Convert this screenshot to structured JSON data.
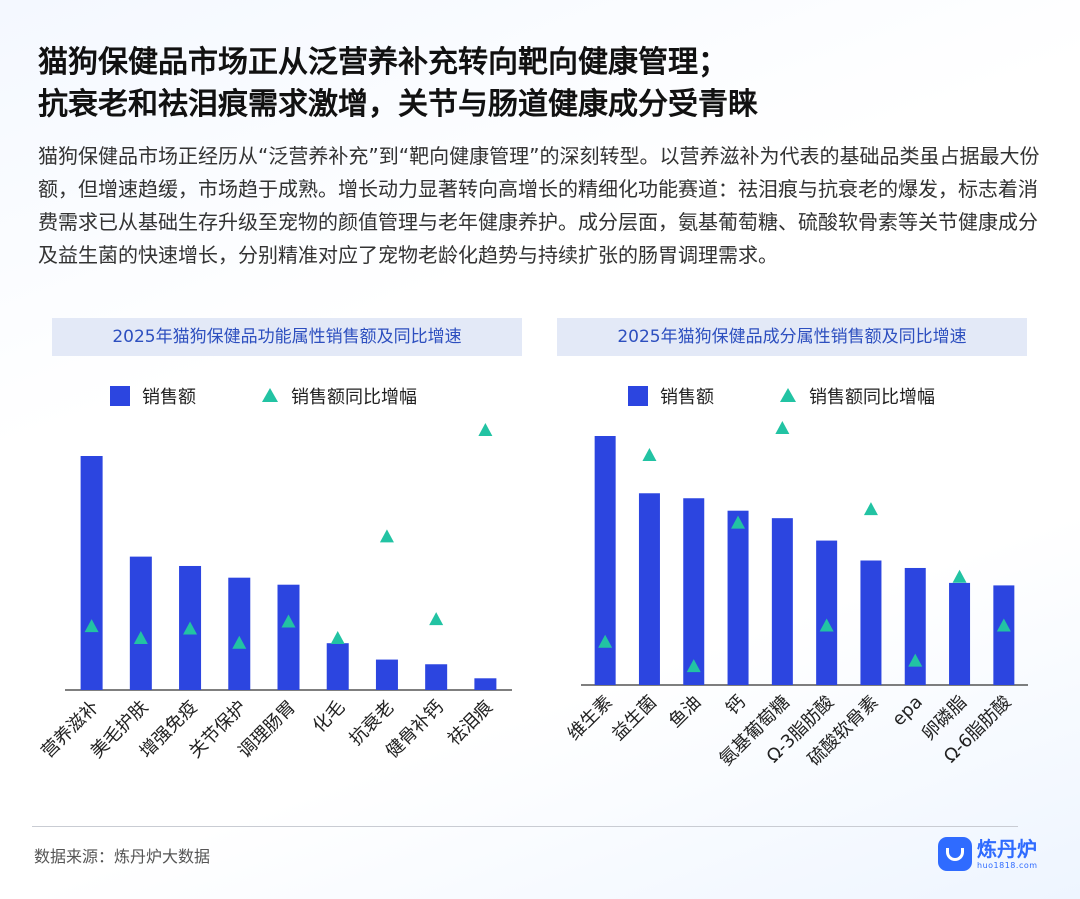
{
  "title": {
    "line1": "猫狗保健品市场正从泛营养补充转向靶向健康管理；",
    "line2": "抗衰老和祛泪痕需求激增，关节与肠道健康成分受青睐"
  },
  "description": "猫狗保健品市场正经历从“泛营养补充”到“靶向健康管理”的深刻转型。以营养滋补为代表的基础品类虽占据最大份额，但增速趋缓，市场趋于成熟。增长动力显著转向高增长的精细化功能赛道：祛泪痕与抗衰老的爆发，标志着消费需求已从基础生存升级至宠物的颜值管理与老年健康养护。成分层面，氨基葡萄糖、硫酸软骨素等关节健康成分及益生菌的快速增长，分别精准对应了宠物老龄化趋势与持续扩张的肠胃调理需求。",
  "colors": {
    "bar": "#2c45e0",
    "marker": "#22c3a3"
  },
  "chart_data": [
    {
      "type": "bar",
      "title": "2025年猫狗保健品功能属性销售额及同比增速",
      "legend": [
        "销售额",
        "销售额同比增幅"
      ],
      "legend_position": "top",
      "categories": [
        "营养滋补",
        "美毛护肤",
        "增强免疫",
        "关节保护",
        "调理肠胃",
        "化毛",
        "抗衰老",
        "健骨补钙",
        "祛泪痕"
      ],
      "series": [
        {
          "name": "销售额",
          "type": "bar",
          "values": [
            100,
            57,
            53,
            48,
            45,
            20,
            13,
            11,
            5
          ]
        },
        {
          "name": "销售额同比增幅",
          "type": "scatter",
          "values": [
            27,
            22,
            26,
            20,
            29,
            22,
            65,
            30,
            110
          ]
        }
      ],
      "grid": false,
      "axis_values_shown": false
    },
    {
      "type": "bar",
      "title": "2025年猫狗保健品成分属性销售额及同比增速",
      "legend": [
        "销售额",
        "销售额同比增幅"
      ],
      "legend_position": "top",
      "categories": [
        "维生素",
        "益生菌",
        "鱼油",
        "钙",
        "氨基葡萄糖",
        "Ω-3脂肪酸",
        "硫酸软骨素",
        "epa",
        "卵磷脂",
        "Ω-6脂肪酸"
      ],
      "series": [
        {
          "name": "销售额",
          "type": "bar",
          "values": [
            100,
            77,
            75,
            70,
            67,
            58,
            50,
            47,
            41,
            40
          ]
        },
        {
          "name": "销售额同比增幅",
          "type": "scatter",
          "values": [
            16,
            85,
            7,
            60,
            95,
            22,
            65,
            9,
            40,
            22
          ]
        }
      ],
      "grid": false,
      "axis_values_shown": false
    }
  ],
  "footer": {
    "source": "数据来源：炼丹炉大数据",
    "logo_name": "炼丹炉",
    "logo_domain": "huo1818.com"
  }
}
